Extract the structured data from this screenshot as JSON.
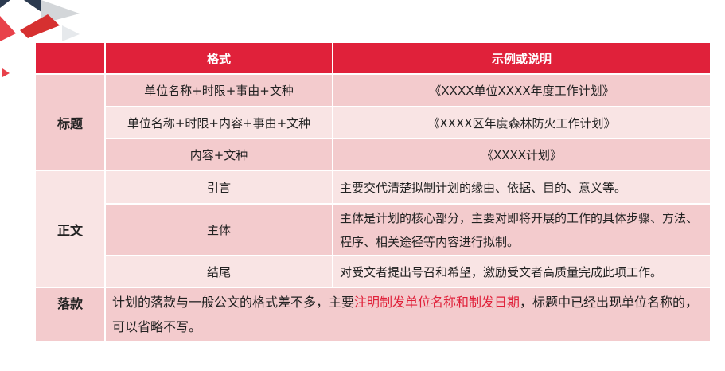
{
  "header": {
    "col1": "",
    "col2": "格式",
    "col3": "示例或说明"
  },
  "title_section": {
    "label": "标题",
    "rows": [
      {
        "format": "单位名称+时限+事由+文种",
        "example": "《XXXX单位XXXX年度工作计划》"
      },
      {
        "format": "单位名称+时限+内容+事由+文种",
        "example": "《XXXX区年度森林防火工作计划》"
      },
      {
        "format": "内容+文种",
        "example": "《XXXX计划》"
      }
    ]
  },
  "body_section": {
    "label": "正文",
    "rows": [
      {
        "format": "引言",
        "example": "主要交代清楚拟制计划的缘由、依据、目的、意义等。"
      },
      {
        "format": "主体",
        "example": "主体是计划的核心部分，主要对即将开展的工作的具体步骤、方法、程序、相关途径等内容进行拟制。"
      },
      {
        "format": "结尾",
        "example": "对受文者提出号召和希望，激励受文者高质量完成此项工作。"
      }
    ]
  },
  "signature_section": {
    "label": "落款",
    "text_before": "计划的落款与一般公文的格式差不多，主要",
    "text_highlight": "注明制发单位名称和制发日期",
    "text_after": "，标题中已经出现单位名称的，可以省略不写。"
  },
  "colors": {
    "accent": "#e0213a",
    "row_dark": "#f3cbcd",
    "row_light": "#f9e4e4"
  }
}
